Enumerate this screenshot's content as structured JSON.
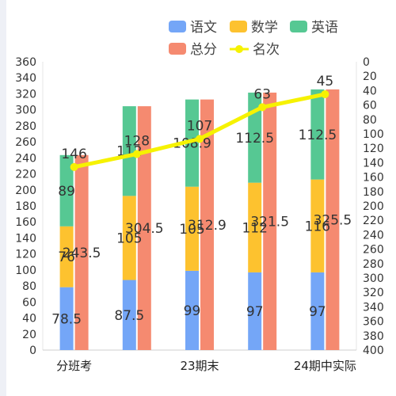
{
  "chart_data": {
    "type": "bar",
    "categories": [
      "分班考",
      "",
      "23期末",
      "",
      "24期中实际"
    ],
    "category_ticks": [
      "分班考",
      "23期末",
      "24期中实际"
    ],
    "series": [
      {
        "name": "语文",
        "stack": "subjects",
        "color": "#74a6f7",
        "values": [
          78.5,
          87.5,
          99,
          97,
          97
        ]
      },
      {
        "name": "数学",
        "stack": "subjects",
        "color": "#fdc22f",
        "values": [
          76,
          105,
          105,
          112,
          116
        ]
      },
      {
        "name": "英语",
        "stack": "subjects",
        "color": "#56c893",
        "values": [
          89,
          112,
          108.9,
          112.5,
          112.5
        ]
      },
      {
        "name": "总分",
        "stack": "total",
        "color": "#f58a70",
        "values": [
          243.5,
          304.5,
          312.9,
          321.5,
          325.5
        ]
      }
    ],
    "rank_series": {
      "name": "名次",
      "type": "line",
      "color": "#f6f200",
      "values": [
        146,
        128,
        107,
        63,
        45
      ]
    },
    "y_left": {
      "min": 0,
      "max": 360,
      "step": 20
    },
    "y_right": {
      "min": 0,
      "max": 400,
      "step": 20,
      "inverse": true
    },
    "legend_position": "top-right",
    "grid": false
  }
}
